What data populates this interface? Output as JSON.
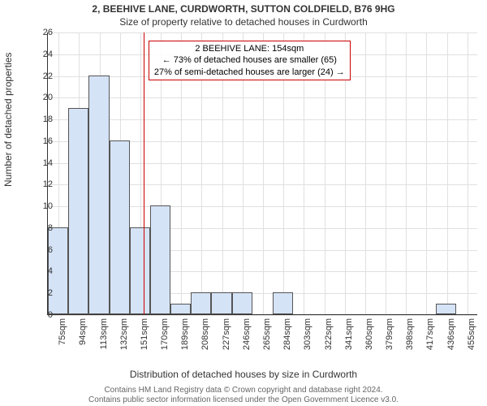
{
  "title": "2, BEEHIVE LANE, CURDWORTH, SUTTON COLDFIELD, B76 9HG",
  "subtitle": "Size of property relative to detached houses in Curdworth",
  "ylabel": "Number of detached properties",
  "xlabel": "Distribution of detached houses by size in Curdworth",
  "footer1": "Contains HM Land Registry data © Crown copyright and database right 2024.",
  "footer2": "Contains public sector information licensed under the Open Government Licence v3.0.",
  "chart": {
    "type": "histogram",
    "ylim": [
      0,
      26
    ],
    "ytick_step": 2,
    "xlim_sqm": [
      65,
      465
    ],
    "xtick_step_sqm": 19,
    "grid_color": "#e0e0e0",
    "bar_fill": "#d5e3f7",
    "bar_border": "#555555",
    "marker_color": "#cc0000",
    "background_color": "#ffffff",
    "xtick_labels": [
      "75sqm",
      "94sqm",
      "113sqm",
      "132sqm",
      "151sqm",
      "170sqm",
      "189sqm",
      "208sqm",
      "227sqm",
      "246sqm",
      "265sqm",
      "284sqm",
      "303sqm",
      "322sqm",
      "341sqm",
      "360sqm",
      "379sqm",
      "398sqm",
      "417sqm",
      "436sqm",
      "455sqm"
    ],
    "bins_start_sqm": [
      65,
      84,
      103,
      122,
      141,
      160,
      179,
      198,
      217,
      236,
      255,
      274,
      293,
      312,
      331,
      350,
      369,
      388,
      407,
      426,
      445
    ],
    "bin_width_sqm": 19,
    "counts": [
      8,
      19,
      22,
      16,
      8,
      10,
      1,
      2,
      2,
      2,
      0,
      2,
      0,
      0,
      0,
      0,
      0,
      0,
      0,
      1,
      0
    ],
    "marker_sqm": 154,
    "annotation": {
      "line1": "2 BEEHIVE LANE: 154sqm",
      "line2": "← 73% of detached houses are smaller (65)",
      "line3": "27% of semi-detached houses are larger (24) →"
    }
  }
}
